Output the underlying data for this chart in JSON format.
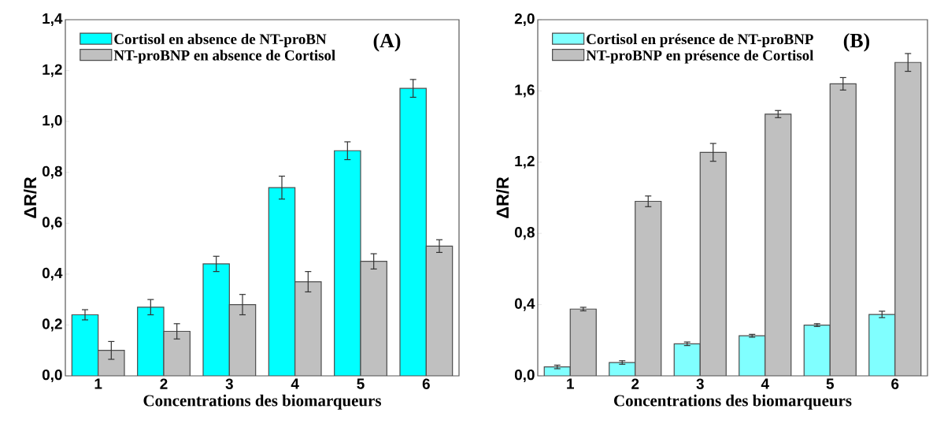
{
  "chart_data": [
    {
      "type": "bar",
      "xlabel": "Concentrations des biomarqueurs",
      "ylabel": "ΔR/R",
      "categories": [
        "1",
        "2",
        "3",
        "4",
        "5",
        "6"
      ],
      "series": [
        {
          "name": "Cortisol en absence de NT-proBN",
          "color": "#00ffff",
          "values": [
            0.24,
            0.27,
            0.44,
            0.74,
            0.885,
            1.13
          ],
          "errors": [
            0.02,
            0.03,
            0.03,
            0.045,
            0.035,
            0.035
          ]
        },
        {
          "name": "NT-proBNP en absence de Cortisol",
          "color": "#c0c0c0",
          "values": [
            0.1,
            0.175,
            0.28,
            0.37,
            0.45,
            0.51
          ],
          "errors": [
            0.035,
            0.03,
            0.04,
            0.04,
            0.03,
            0.025
          ]
        }
      ],
      "ylim": [
        0,
        1.4
      ],
      "yticks": [
        {
          "value": 0,
          "label": "0,0"
        },
        {
          "value": 0.2,
          "label": "0,2"
        },
        {
          "value": 0.4,
          "label": "0,4"
        },
        {
          "value": 0.6,
          "label": "0,6"
        },
        {
          "value": 0.8,
          "label": "0,8"
        },
        {
          "value": 1.0,
          "label": "1,0"
        },
        {
          "value": 1.2,
          "label": "1,2"
        },
        {
          "value": 1.4,
          "label": "1,4"
        }
      ],
      "legend": "top left",
      "grid": false,
      "annotations": [
        "(A)"
      ]
    },
    {
      "type": "bar",
      "xlabel": "Concentrations des biomarqueurs",
      "ylabel": "ΔR/R",
      "categories": [
        "1",
        "2",
        "3",
        "4",
        "5",
        "6"
      ],
      "series": [
        {
          "name": "Cortisol en présence de NT-proBNP",
          "color": "#80ffff",
          "values": [
            0.05,
            0.075,
            0.18,
            0.225,
            0.285,
            0.345
          ],
          "errors": [
            0.01,
            0.01,
            0.01,
            0.008,
            0.008,
            0.018
          ]
        },
        {
          "name": "NT-proBNP en présence de Cortisol",
          "color": "#c0c0c0",
          "values": [
            0.375,
            0.98,
            1.255,
            1.47,
            1.64,
            1.76
          ],
          "errors": [
            0.01,
            0.03,
            0.05,
            0.02,
            0.035,
            0.05
          ]
        }
      ],
      "ylim": [
        0,
        2.0
      ],
      "yticks": [
        {
          "value": 0,
          "label": "0,0"
        },
        {
          "value": 0.4,
          "label": "0,4"
        },
        {
          "value": 0.8,
          "label": "0,8"
        },
        {
          "value": 1.2,
          "label": "1,2"
        },
        {
          "value": 1.6,
          "label": "1,6"
        },
        {
          "value": 2.0,
          "label": "2,0"
        }
      ],
      "legend": "top left",
      "grid": false,
      "annotations": [
        "(B)"
      ]
    }
  ]
}
